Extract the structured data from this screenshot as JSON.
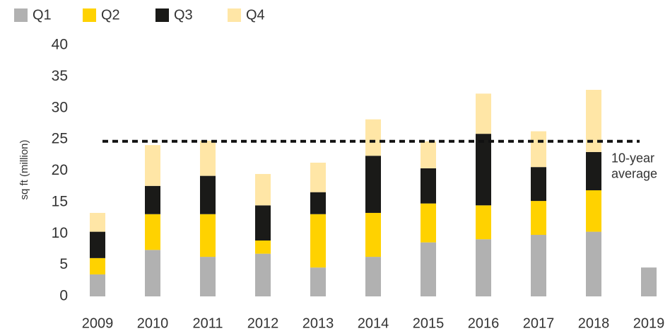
{
  "chart_data": {
    "type": "stacked_bar",
    "y_axis_label": "sq ft (million)",
    "categories": [
      "2009",
      "2010",
      "2011",
      "2012",
      "2013",
      "2014",
      "2015",
      "2016",
      "2017",
      "2018",
      "2019"
    ],
    "series": [
      {
        "name": "Q1",
        "color": "#b1b1b1",
        "values": [
          3.5,
          7.4,
          6.3,
          6.8,
          4.6,
          6.3,
          8.6,
          9.1,
          9.8,
          10.3,
          4.6
        ]
      },
      {
        "name": "Q2",
        "color": "#ffd200",
        "values": [
          2.6,
          5.7,
          6.8,
          2.1,
          8.5,
          7.0,
          6.2,
          5.4,
          5.4,
          6.6,
          null
        ]
      },
      {
        "name": "Q3",
        "color": "#1a1a18",
        "values": [
          4.2,
          4.5,
          6.1,
          5.6,
          3.5,
          9.1,
          5.6,
          11.4,
          5.4,
          6.1,
          null
        ]
      },
      {
        "name": "Q4",
        "color": "#ffe6a6",
        "values": [
          3.0,
          6.5,
          5.6,
          5.0,
          4.7,
          5.8,
          4.3,
          6.4,
          5.7,
          9.9,
          null
        ]
      }
    ],
    "average": 24.7,
    "annotation": [
      "10-year",
      "average"
    ],
    "ylim": [
      0,
      40
    ],
    "yticks": [
      0,
      5,
      10,
      15,
      20,
      25,
      30,
      35,
      40
    ]
  }
}
